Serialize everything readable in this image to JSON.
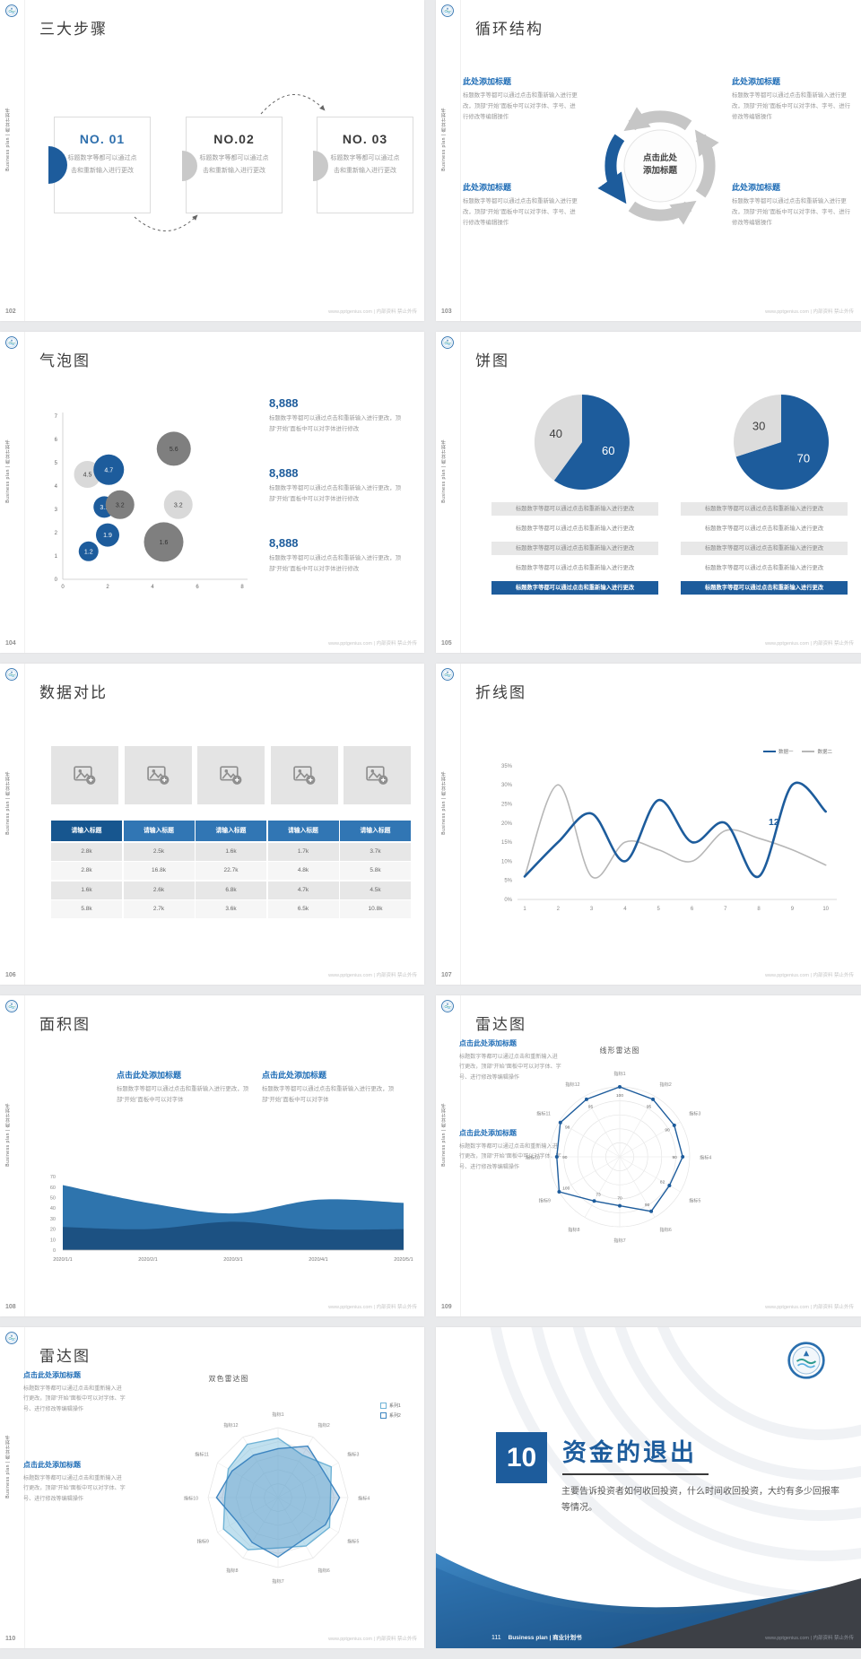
{
  "global": {
    "footer_url": "www.pptgenius.com | 内部资料 禁止外传",
    "sidebar_text": "Business plan | 商业计划书",
    "colors": {
      "primary": "#1d5c9c",
      "heading_blue": "#1f6db6",
      "bubble_dark_gray": "#7f7f7f",
      "bubble_light_gray": "#d9d9d9",
      "table_header_first": "#17568f",
      "table_header": "#3176b4"
    }
  },
  "slides": {
    "s102": {
      "page": "102",
      "title": "三大步骤",
      "steps": [
        {
          "no": "NO. 01",
          "body": "标题数字等都可以通过点击和重新输入进行更改"
        },
        {
          "no": "NO.02",
          "body": "标题数字等都可以通过点击和重新输入进行更改"
        },
        {
          "no": "NO. 03",
          "body": "标题数字等都可以通过点击和重新输入进行更改"
        }
      ]
    },
    "s103": {
      "page": "103",
      "title": "循环结构",
      "center_line1": "点击此处",
      "center_line2": "添加标题",
      "blocks": [
        {
          "heading": "此处添加标题",
          "body": "标题数字等都可以通过点击和重新输入进行更改，顶部“开始”面板中可以对字体、字号、进行修改等编辑操作"
        },
        {
          "heading": "此处添加标题",
          "body": "标题数字等都可以通过点击和重新输入进行更改，顶部“开始”面板中可以对字体、字号、进行修改等编辑操作"
        },
        {
          "heading": "此处添加标题",
          "body": "标题数字等都可以通过点击和重新输入进行更改，顶部“开始”面板中可以对字体、字号、进行修改等编辑操作"
        },
        {
          "heading": "此处添加标题",
          "body": "标题数字等都可以通过点击和重新输入进行更改，顶部“开始”面板中可以对字体、字号、进行修改等编辑操作"
        }
      ]
    },
    "s104": {
      "page": "104",
      "title": "气泡图",
      "stats": [
        {
          "value": "8,888",
          "body": "标题数字等都可以通过点击和重新输入进行更改，顶部“开始”面板中可以对字体进行修改"
        },
        {
          "value": "8,888",
          "body": "标题数字等都可以通过点击和重新输入进行更改，顶部“开始”面板中可以对字体进行修改"
        },
        {
          "value": "8,888",
          "body": "标题数字等都可以通过点击和重新输入进行更改，顶部“开始”面板中可以对字体进行修改"
        }
      ],
      "chart_data": {
        "type": "scatter",
        "x_ticks": [
          0,
          2,
          4,
          6,
          8
        ],
        "y_ticks": [
          0,
          1,
          2,
          3,
          4,
          5,
          6,
          7
        ],
        "bubbles": [
          {
            "x": 1.1,
            "y": 4.5,
            "value": "4.5",
            "r": 15,
            "color": "#d9d9d9",
            "text": "#444444"
          },
          {
            "x": 2.05,
            "y": 4.7,
            "value": "4.7",
            "r": 17,
            "color": "#1d5c9c",
            "text": "#ffffff"
          },
          {
            "x": 4.95,
            "y": 5.6,
            "value": "5.6",
            "r": 19,
            "color": "#7f7f7f",
            "text": "#333333"
          },
          {
            "x": 1.85,
            "y": 3.1,
            "value": "3.1",
            "r": 12,
            "color": "#1d5c9c",
            "text": "#ffffff"
          },
          {
            "x": 2.55,
            "y": 3.2,
            "value": "3.2",
            "r": 16,
            "color": "#7f7f7f",
            "text": "#333333"
          },
          {
            "x": 5.15,
            "y": 3.2,
            "value": "3.2",
            "r": 16,
            "color": "#d9d9d9",
            "text": "#444444"
          },
          {
            "x": 2.0,
            "y": 1.9,
            "value": "1.9",
            "r": 13,
            "color": "#1d5c9c",
            "text": "#ffffff"
          },
          {
            "x": 4.5,
            "y": 1.6,
            "value": "1.6",
            "r": 22,
            "color": "#7f7f7f",
            "text": "#333333"
          },
          {
            "x": 1.15,
            "y": 1.2,
            "value": "1.2",
            "r": 11,
            "color": "#1d5c9c",
            "text": "#ffffff"
          }
        ]
      }
    },
    "s105": {
      "page": "105",
      "title": "饼图",
      "row_text": "标题数字等都可以通过点击和重新输入进行更改",
      "rows_per_pie": 5,
      "chart_data": [
        {
          "type": "pie",
          "slices": [
            {
              "label": "60",
              "value": 60,
              "color": "#1d5c9c",
              "text": "#ffffff"
            },
            {
              "label": "40",
              "value": 40,
              "color": "#dcdcdc",
              "text": "#3f3f3f"
            }
          ]
        },
        {
          "type": "pie",
          "slices": [
            {
              "label": "70",
              "value": 70,
              "color": "#1d5c9c",
              "text": "#ffffff"
            },
            {
              "label": "30",
              "value": 30,
              "color": "#dcdcdc",
              "text": "#3f3f3f"
            }
          ]
        }
      ]
    },
    "s106": {
      "page": "106",
      "title": "数据对比",
      "table": {
        "headers": [
          "请输入标题",
          "请输入标题",
          "请输入标题",
          "请输入标题",
          "请输入标题"
        ],
        "header_colors": [
          "#17568f",
          "#3176b4",
          "#3176b4",
          "#3176b4",
          "#3176b4"
        ],
        "rows": [
          [
            "2.8k",
            "2.5k",
            "1.6k",
            "1.7k",
            "3.7k"
          ],
          [
            "2.8k",
            "16.8k",
            "22.7k",
            "4.8k",
            "5.8k"
          ],
          [
            "1.6k",
            "2.6k",
            "6.8k",
            "4.7k",
            "4.5k"
          ],
          [
            "5.8k",
            "2.7k",
            "3.6k",
            "6.5k",
            "10.8k"
          ]
        ]
      }
    },
    "s107": {
      "page": "107",
      "title": "折线图",
      "chart_data": {
        "type": "line",
        "x": [
          1,
          2,
          3,
          4,
          5,
          6,
          7,
          8,
          9,
          10
        ],
        "y_ticks": [
          "0%",
          "5%",
          "10%",
          "15%",
          "20%",
          "25%",
          "30%",
          "35%"
        ],
        "ylim": [
          0,
          35
        ],
        "legend_position": "top-right",
        "series": [
          {
            "name": "数据一",
            "color": "#1d5c9c",
            "width": 2.6,
            "values": [
              6,
              15,
              22.5,
              10,
              26,
              15,
              20,
              6,
              30,
              23
            ]
          },
          {
            "name": "数据二",
            "color": "#b7b7b7",
            "width": 1.6,
            "values": [
              6,
              30,
              6,
              15,
              13,
              10,
              18,
              16,
              13,
              9
            ]
          }
        ],
        "annotation": {
          "text": "12",
          "x": 8.45,
          "y": 19.5
        }
      }
    },
    "s108": {
      "page": "108",
      "title": "面积图",
      "blocks": [
        {
          "heading": "点击此处添加标题",
          "body": "标题数字等都可以通过点击和重新输入进行更改，顶部“开始”面板中可以对字体"
        },
        {
          "heading": "点击此处添加标题",
          "body": "标题数字等都可以通过点击和重新输入进行更改，顶部“开始”面板中可以对字体"
        }
      ],
      "chart_data": {
        "type": "area",
        "categories": [
          "2020/1/1",
          "2020/2/1",
          "2020/3/1",
          "2020/4/1",
          "2020/5/1"
        ],
        "y_ticks": [
          0,
          10,
          20,
          30,
          40,
          50,
          60,
          70
        ],
        "ylim": [
          0,
          70
        ],
        "series": [
          {
            "color": "#2e74ad",
            "values": [
              62,
              45,
              35,
              48,
              45
            ]
          },
          {
            "color": "#1c5182",
            "values": [
              22,
              20,
              27,
              20,
              20
            ]
          }
        ]
      }
    },
    "s109": {
      "page": "109",
      "title": "雷达图",
      "chart_title": "线形雷达图",
      "blocks": [
        {
          "heading": "点击此处添加标题",
          "body": "标题数字等都可以通过点击和重新输入进行更改，顶部“开始”面板中可以对字体、字号、进行修改等编辑操作"
        },
        {
          "heading": "点击此处添加标题",
          "body": "标题数字等都可以通过点击和重新输入进行更改，顶部“开始”面板中可以对字体、字号、进行修改等编辑操作"
        }
      ],
      "chart_data": {
        "type": "radar",
        "grid": "circle",
        "max": 100,
        "labels": [
          "指标1",
          "指标2",
          "指标3",
          "指标4",
          "指标5",
          "指标6",
          "指标7",
          "指标8",
          "指标9",
          "指标10",
          "指标11",
          "指标12"
        ],
        "show_values": true,
        "series": [
          {
            "color": "#1d5c9c",
            "dots": true,
            "fill": "none",
            "values": [
              100,
              95,
              90,
              90,
              82,
              90,
              70,
              73,
              100,
              90,
              98,
              95
            ]
          }
        ]
      }
    },
    "s110": {
      "page": "110",
      "title": "雷达图",
      "chart_title": "双色雷达图",
      "legend": [
        "系列1",
        "系列2"
      ],
      "blocks": [
        {
          "heading": "点击此处添加标题",
          "body": "标题数字等都可以通过点击和重新输入进行更改，顶部“开始”面板中可以对字体、字号、进行修改等编辑操作"
        },
        {
          "heading": "点击此处添加标题",
          "body": "标题数字等都可以通过点击和重新输入进行更改，顶部“开始”面板中可以对字体、字号、进行修改等编辑操作"
        }
      ],
      "chart_data": {
        "type": "radar",
        "grid": "polygon",
        "max": 100,
        "labels": [
          "指标1",
          "指标2",
          "指标3",
          "指标4",
          "指标5",
          "指标6",
          "指标7",
          "指标8",
          "指标9",
          "指标10",
          "指标11",
          "指标12"
        ],
        "show_values": false,
        "series": [
          {
            "name": "系列1",
            "color": "#6fb3d6",
            "fill": "rgba(141,199,226,0.55)",
            "values": [
              85,
              70,
              88,
              75,
              85,
              80,
              72,
              86,
              90,
              76,
              82,
              88
            ]
          },
          {
            "name": "系列2",
            "color": "#3d85c0",
            "fill": "rgba(47,117,181,0.28)",
            "values": [
              70,
              85,
              75,
              88,
              78,
              70,
              85,
              74,
              68,
              88,
              76,
              70
            ]
          }
        ]
      }
    },
    "s111": {
      "page": "111",
      "number": "10",
      "title": "资金的退出",
      "body": "主要告诉投资者如何收回投资，什么时间收回投资，大约有多少回报率等情况。",
      "brand": "Business plan | 商业计划书"
    }
  }
}
